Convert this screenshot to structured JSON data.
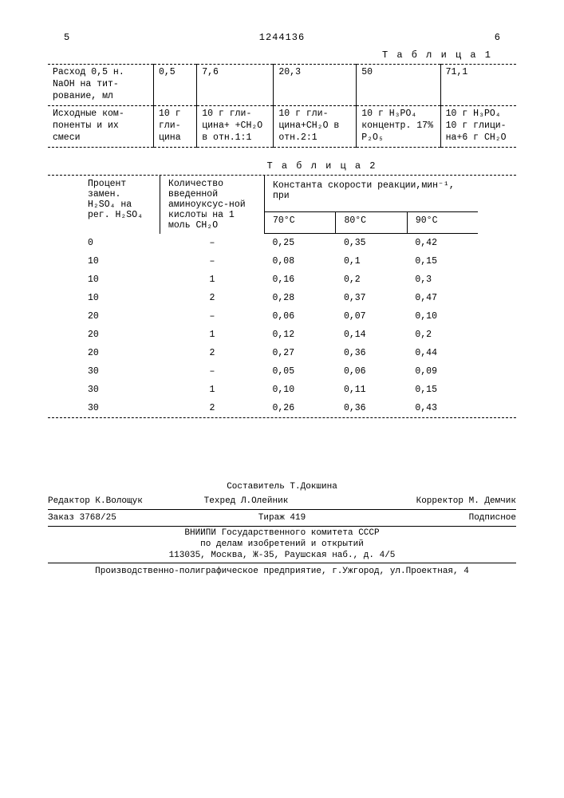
{
  "header": {
    "left_page": "5",
    "doc_number": "1244136",
    "right_page": "6"
  },
  "table1": {
    "title": "Т а б л и ц а  1",
    "rows": [
      {
        "label": "Расход 0,5 н. NaOH на тит-рование, мл",
        "c1": "0,5",
        "c2": "7,6",
        "c3": "20,3",
        "c4": "50",
        "c5": "71,1"
      },
      {
        "label": "Исходные ком-поненты и их смеси",
        "c1": "10 г гли-цина",
        "c2": "10 г гли-цина+ +CH₂O в отн.1:1",
        "c3": "10 г гли-цина+CH₂O в отн.2:1",
        "c4": "10 г H₃PO₄ концентр. 17% P₂O₅",
        "c5": "10 г H₃PO₄ 10 г глици-на+6 г CH₂O"
      }
    ]
  },
  "table2": {
    "title": "Т а б л и ц а  2",
    "header": {
      "col1": "Процент замен. H₂SO₄ на рег. H₂SO₄",
      "col2": "Количество введенной аминоуксус-ной кислоты на 1 моль CH₂O",
      "col3_top": "Константа скорости реакции,мин⁻¹, при",
      "sub1": "70°C",
      "sub2": "80°C",
      "sub3": "90°C"
    },
    "rows": [
      {
        "a": "0",
        "b": "–",
        "c": "0,25",
        "d": "0,35",
        "e": "0,42"
      },
      {
        "a": "10",
        "b": "–",
        "c": "0,08",
        "d": "0,1",
        "e": "0,15"
      },
      {
        "a": "10",
        "b": "1",
        "c": "0,16",
        "d": "0,2",
        "e": "0,3"
      },
      {
        "a": "10",
        "b": "2",
        "c": "0,28",
        "d": "0,37",
        "e": "0,47"
      },
      {
        "a": "20",
        "b": "–",
        "c": "0,06",
        "d": "0,07",
        "e": "0,10"
      },
      {
        "a": "20",
        "b": "1",
        "c": "0,12",
        "d": "0,14",
        "e": "0,2"
      },
      {
        "a": "20",
        "b": "2",
        "c": "0,27",
        "d": "0,36",
        "e": "0,44"
      },
      {
        "a": "30",
        "b": "–",
        "c": "0,05",
        "d": "0,06",
        "e": "0,09"
      },
      {
        "a": "30",
        "b": "1",
        "c": "0,10",
        "d": "0,11",
        "e": "0,15"
      },
      {
        "a": "30",
        "b": "2",
        "c": "0,26",
        "d": "0,36",
        "e": "0,43"
      }
    ]
  },
  "footer": {
    "compiler": "Составитель Т.Докшина",
    "editor": "Редактор К.Волощук",
    "techred": "Техред Л.Олейник",
    "corrector": "Корректор М. Демчик",
    "order": "Заказ 3768/25",
    "tirage": "Тираж 419",
    "subscript": "Подписное",
    "org1": "ВНИИПИ Государственного комитета СССР",
    "org2": "по делам изобретений и открытий",
    "addr": "113035, Москва, Ж-35, Раушская наб., д. 4/5",
    "printer": "Производственно-полиграфическое предприятие, г.Ужгород, ул.Проектная, 4"
  }
}
